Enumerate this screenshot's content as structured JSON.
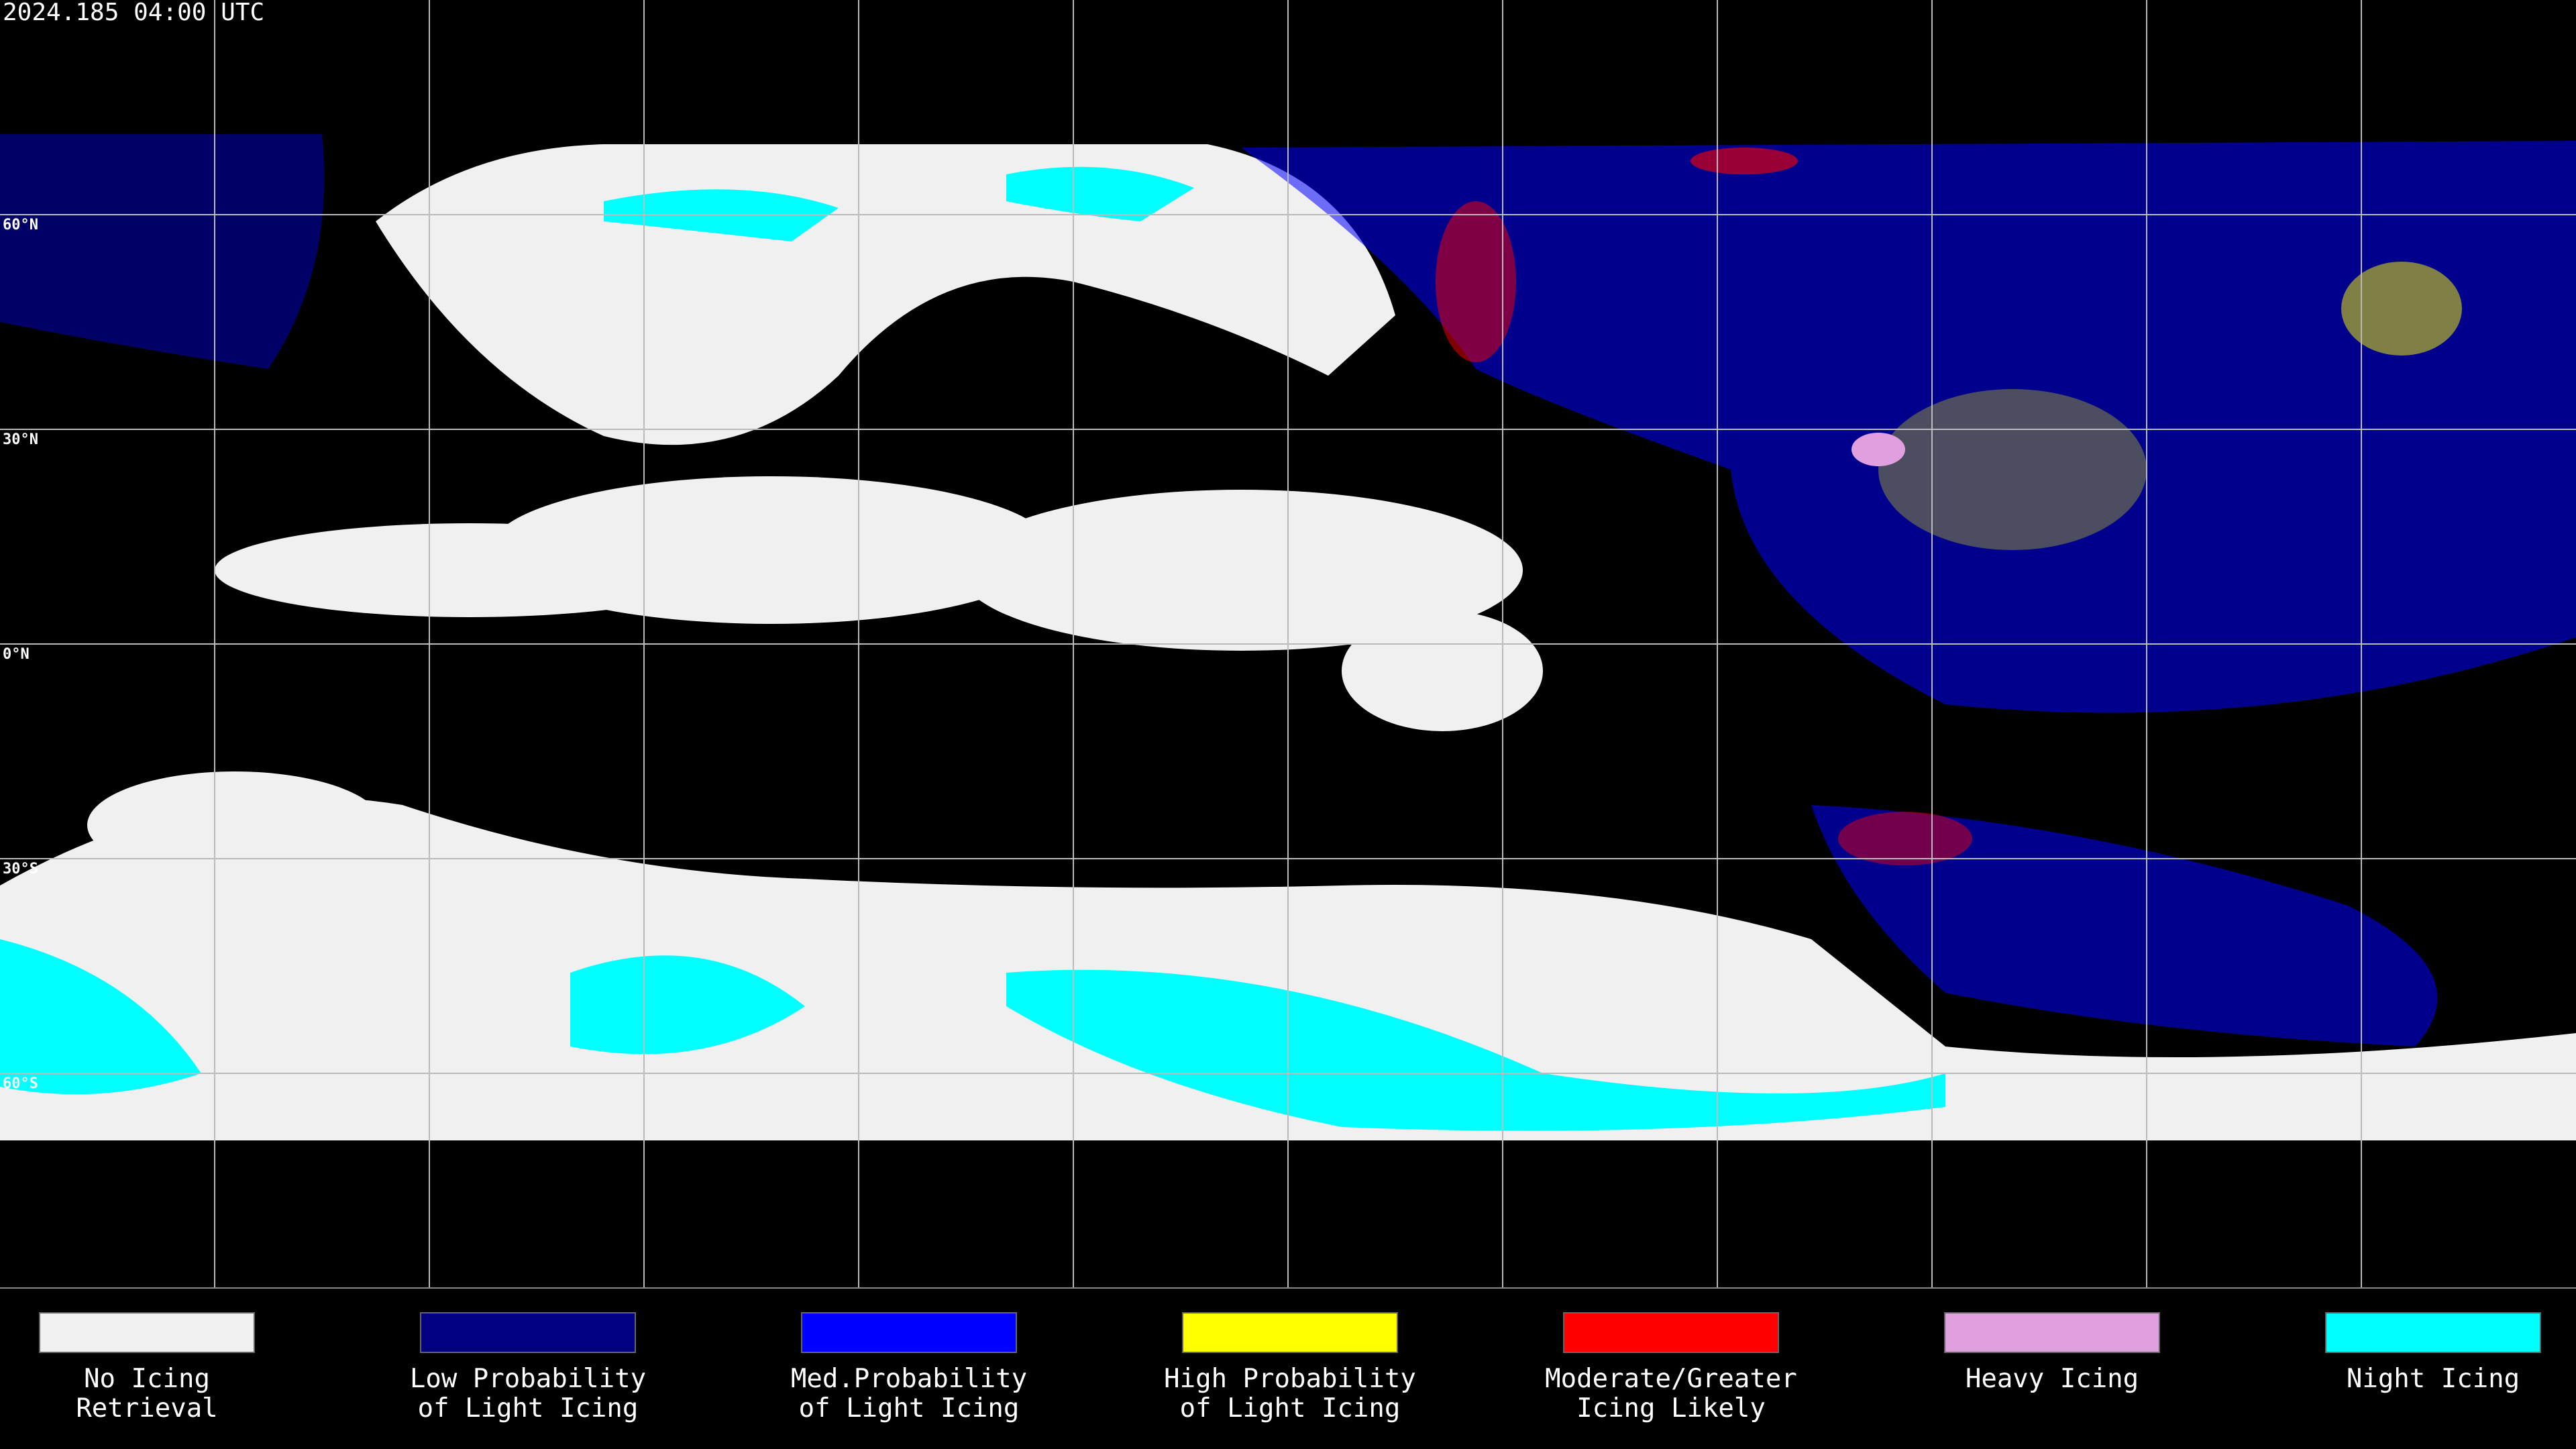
{
  "header": {
    "timestamp": "2024.185 04:00 UTC"
  },
  "map": {
    "latitude_labels": [
      "60°N",
      "30°N",
      "0°N",
      "30°S",
      "60°S"
    ]
  },
  "legend": {
    "items": [
      {
        "color": "#f0f0f0",
        "lines": [
          "No Icing",
          "Retrieval"
        ]
      },
      {
        "color": "#000080",
        "lines": [
          "Low Probability",
          "of Light Icing"
        ]
      },
      {
        "color": "#0000ff",
        "lines": [
          "Med.Probability",
          "of Light Icing"
        ]
      },
      {
        "color": "#ffff00",
        "lines": [
          "High Probability",
          "of Light Icing"
        ]
      },
      {
        "color": "#ff0000",
        "lines": [
          "Moderate/Greater",
          "Icing Likely"
        ]
      },
      {
        "color": "#e0a0e0",
        "lines": [
          "Heavy Icing"
        ]
      },
      {
        "color": "#00ffff",
        "lines": [
          "Night Icing"
        ]
      }
    ]
  }
}
